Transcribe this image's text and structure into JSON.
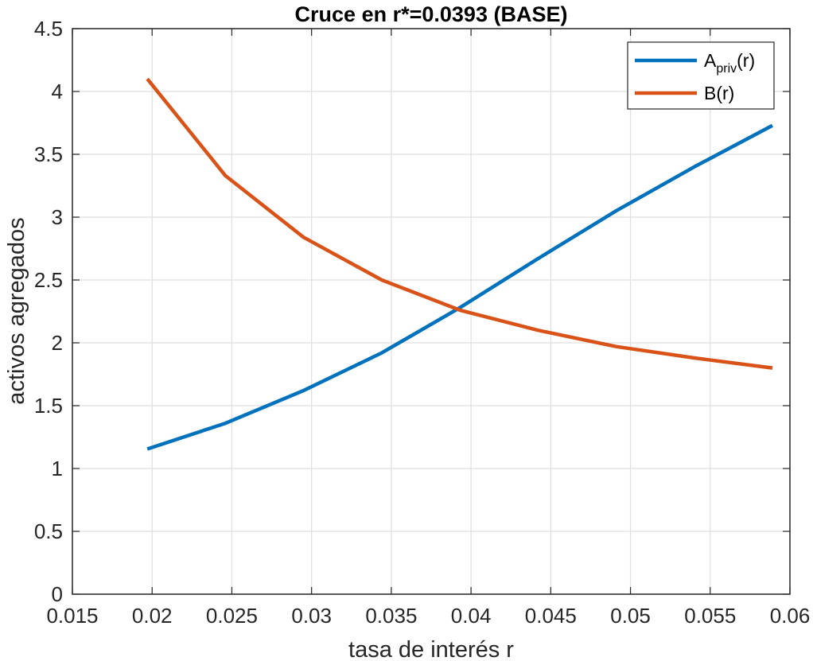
{
  "chart_data": {
    "type": "line",
    "title": "Cruce en r*=0.0393 (BASE)",
    "xlabel": "tasa de interés r",
    "ylabel": "activos agregados",
    "xlim": [
      0.015,
      0.06
    ],
    "ylim": [
      0,
      4.5
    ],
    "xticks": [
      0.015,
      0.02,
      0.025,
      0.03,
      0.035,
      0.04,
      0.045,
      0.05,
      0.055,
      0.06
    ],
    "xtick_labels": [
      "0.015",
      "0.02",
      "0.025",
      "0.03",
      "0.035",
      "0.04",
      "0.045",
      "0.05",
      "0.055",
      "0.06"
    ],
    "yticks": [
      0,
      0.5,
      1,
      1.5,
      2,
      2.5,
      3,
      3.5,
      4,
      4.5
    ],
    "ytick_labels": [
      "0",
      "0.5",
      "1",
      "1.5",
      "2",
      "2.5",
      "3",
      "3.5",
      "4",
      "4.5"
    ],
    "grid": true,
    "legend_position": "top-right",
    "series": [
      {
        "name_main": "A",
        "name_sub": "priv",
        "name_tail": "(r)",
        "color": "#0072BD",
        "x": [
          0.0197,
          0.0246,
          0.0295,
          0.0344,
          0.0393,
          0.0442,
          0.0491,
          0.054,
          0.0589
        ],
        "y": [
          1.155,
          1.36,
          1.62,
          1.92,
          2.28,
          2.67,
          3.05,
          3.4,
          3.73
        ]
      },
      {
        "name": "B(r)",
        "color": "#D95319",
        "x": [
          0.0197,
          0.0246,
          0.0295,
          0.0344,
          0.0393,
          0.0442,
          0.0491,
          0.054,
          0.0589
        ],
        "y": [
          4.1,
          3.33,
          2.84,
          2.5,
          2.26,
          2.1,
          1.97,
          1.88,
          1.8
        ]
      }
    ]
  }
}
